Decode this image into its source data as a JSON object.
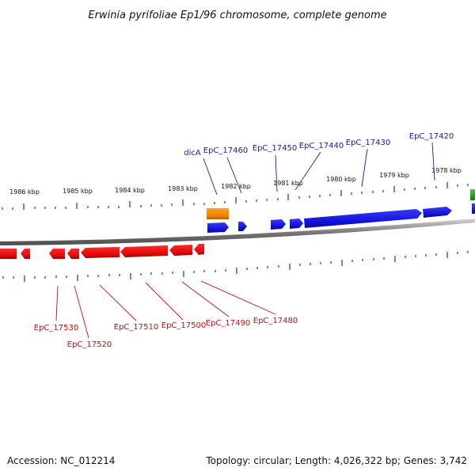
{
  "title": "Erwinia pyrifoliae Ep1/96 chromosome, complete genome",
  "scale_labels": [
    "1986 kbp",
    "1985 kbp",
    "1984 kbp",
    "1983 kbp",
    "1982 kbp",
    "1981 kbp",
    "1980 kbp",
    "1979 kbp",
    "1978 kbp"
  ],
  "top_genes": [
    "dicA",
    "EpC_17460",
    "EpC_17450",
    "EpC_17440",
    "EpC_17430",
    "EpC_17420"
  ],
  "bottom_genes": [
    "EpC_17530",
    "EpC_17520",
    "EpC_17510",
    "EpC_17500",
    "EpC_17490",
    "EpC_17480"
  ],
  "footer": {
    "accession": "Accession: NC_012214",
    "topology": "Topology: circular; Length: 4,026,322 bp; Genes: 3,742"
  },
  "colors": {
    "forward": "#1515e0",
    "reverse": "#e81010",
    "highlight": "#f08c00",
    "other": "#20b020",
    "ticks": "#1e7a1e",
    "label_blue": "#1a1aa0",
    "label_red": "#c01010"
  }
}
